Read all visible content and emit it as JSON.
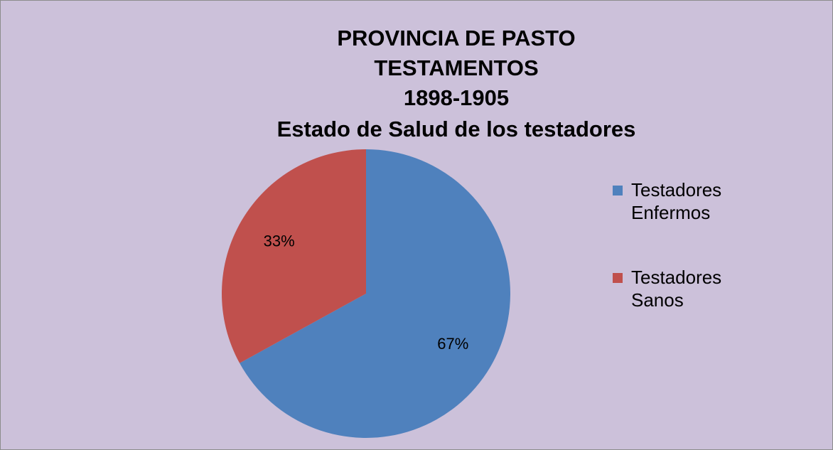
{
  "chart_data": {
    "type": "pie",
    "title": [
      "PROVINCIA DE PASTO",
      "TESTAMENTOS",
      "1898-1905",
      "Estado de Salud de los testadores"
    ],
    "categories": [
      "Testadores Enfermos",
      "Testadores Sanos"
    ],
    "values": [
      67,
      33
    ],
    "value_labels": [
      "67%",
      "33%"
    ],
    "colors": [
      "#4f81bd",
      "#c0504d"
    ],
    "legend": "right"
  }
}
